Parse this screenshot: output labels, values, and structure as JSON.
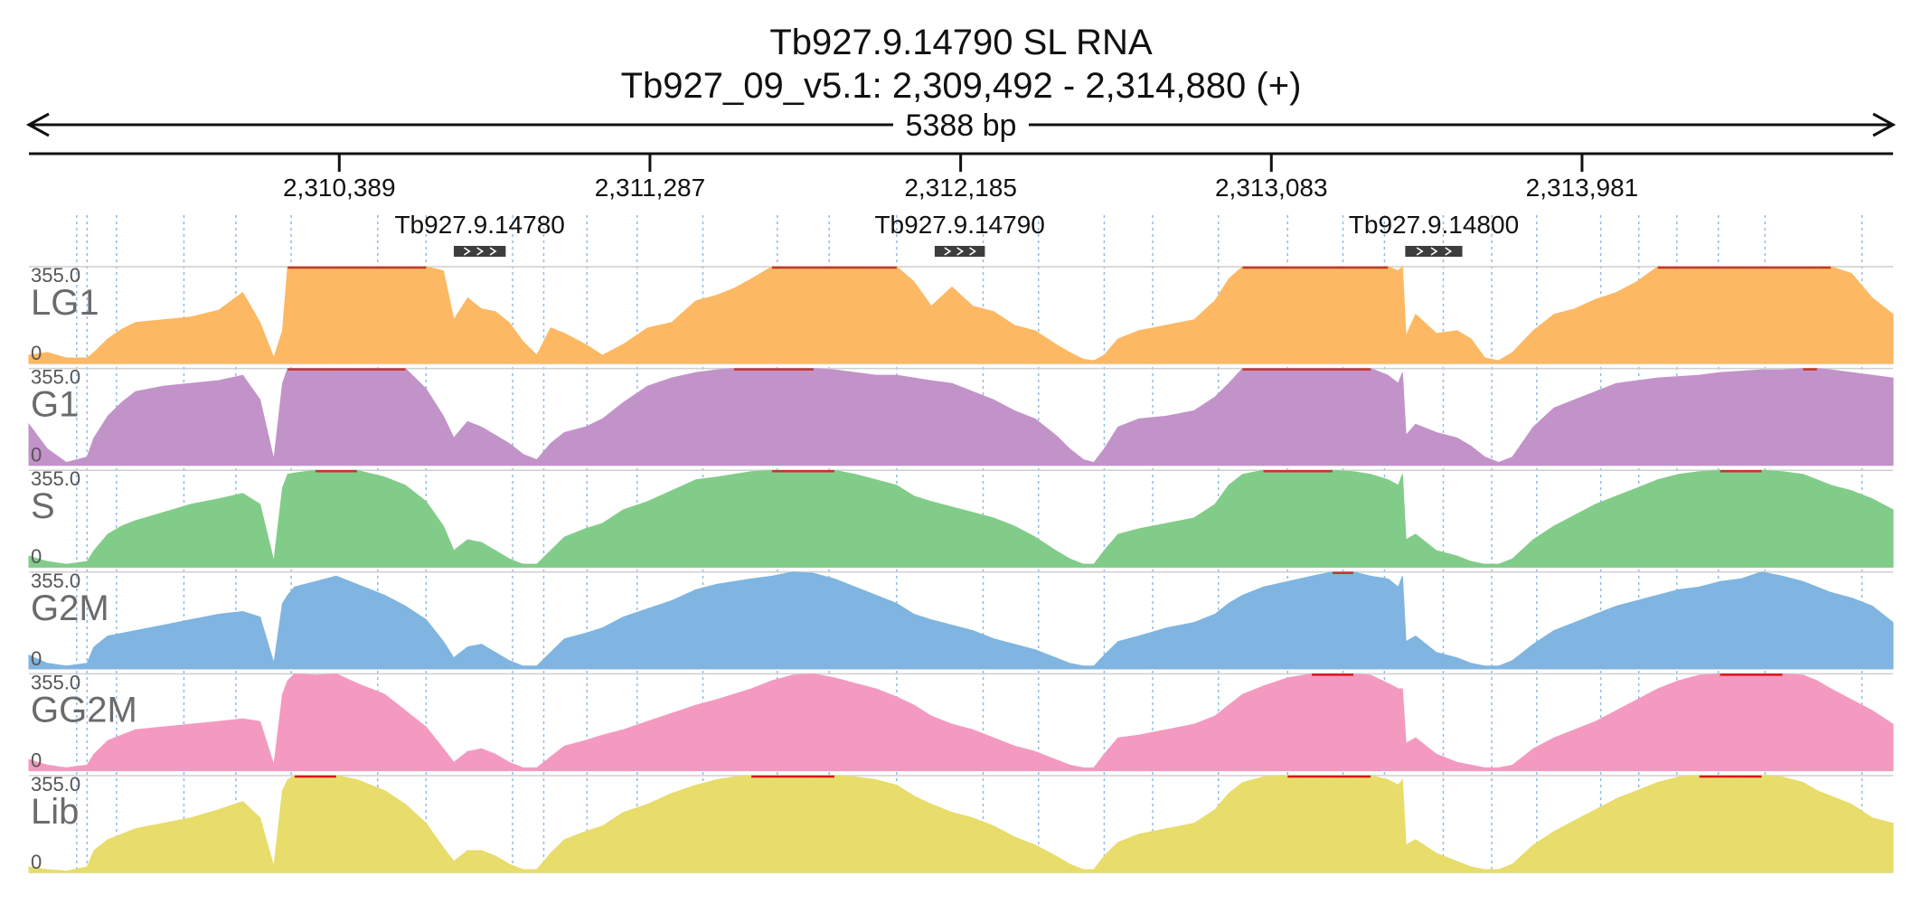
{
  "chart_data": {
    "type": "area",
    "title": "Tb927.9.14790  SL RNA",
    "subtitle": "Tb927_09_v5.1: 2,309,492 - 2,314,880 (+)",
    "span_label": "5388 bp",
    "xlim": [
      2309492,
      2314880
    ],
    "x_ticks": [
      2310389,
      2311287,
      2312185,
      2313083,
      2313981
    ],
    "x_tick_labels": [
      "2,310,389",
      "2,311,287",
      "2,312,185",
      "2,313,083",
      "2,313,981"
    ],
    "grid_lines": [
      2309630,
      2309660,
      2309745,
      2309940,
      2310090,
      2310250,
      2310500,
      2310640,
      2310890,
      2310980,
      2311105,
      2311250,
      2311440,
      2311655,
      2311805,
      2312000,
      2312250,
      2312410,
      2312600,
      2312740,
      2312930,
      2313130,
      2313290,
      2313410,
      2313580,
      2313720,
      2313850,
      2314035,
      2314145,
      2314255,
      2314375,
      2314510,
      2314790
    ],
    "genes": [
      {
        "name": "Tb927.9.14780",
        "start": 2310720,
        "end": 2310870,
        "strand": "+"
      },
      {
        "name": "Tb927.9.14790",
        "start": 2312110,
        "end": 2312255,
        "strand": "+"
      },
      {
        "name": "Tb927.9.14800",
        "start": 2313470,
        "end": 2313635,
        "strand": "+"
      }
    ],
    "ylim": [
      0,
      355.0
    ],
    "y_max_label": "355.0",
    "y_min_label": "0",
    "x": [
      2309492,
      2309545,
      2309600,
      2309660,
      2309680,
      2309720,
      2309760,
      2309800,
      2309880,
      2309960,
      2310040,
      2310110,
      2310160,
      2310200,
      2310225,
      2310240,
      2310260,
      2310320,
      2310380,
      2310440,
      2310520,
      2310580,
      2310640,
      2310690,
      2310720,
      2310760,
      2310800,
      2310840,
      2310880,
      2310920,
      2310960,
      2311000,
      2311040,
      2311100,
      2311150,
      2311210,
      2311280,
      2311350,
      2311420,
      2311480,
      2311530,
      2311580,
      2311640,
      2311700,
      2311760,
      2311820,
      2311880,
      2311940,
      2312000,
      2312050,
      2312100,
      2312160,
      2312220,
      2312280,
      2312340,
      2312400,
      2312460,
      2312500,
      2312540,
      2312570,
      2312600,
      2312640,
      2312700,
      2312780,
      2312860,
      2312920,
      2312960,
      2313000,
      2313060,
      2313130,
      2313200,
      2313260,
      2313320,
      2313370,
      2313420,
      2313450,
      2313462,
      2313472,
      2313500,
      2313560,
      2313620,
      2313660,
      2313700,
      2313740,
      2313780,
      2313840,
      2313900,
      2313960,
      2314020,
      2314080,
      2314140,
      2314200,
      2314260,
      2314320,
      2314380,
      2314440,
      2314500,
      2314560,
      2314620,
      2314660,
      2314700,
      2314760,
      2314820,
      2314880
    ],
    "series": [
      {
        "name": "LG1",
        "color": "#FDB863",
        "clip_color": "#C0392B",
        "values": [
          30,
          40,
          20,
          20,
          40,
          90,
          125,
          150,
          160,
          170,
          195,
          260,
          150,
          20,
          120,
          360,
          360,
          360,
          360,
          360,
          360,
          360,
          360,
          340,
          160,
          240,
          200,
          190,
          150,
          80,
          30,
          130,
          110,
          70,
          30,
          70,
          130,
          150,
          230,
          250,
          275,
          310,
          360,
          360,
          360,
          360,
          360,
          360,
          360,
          300,
          210,
          280,
          210,
          190,
          140,
          120,
          70,
          40,
          15,
          10,
          30,
          90,
          120,
          140,
          160,
          230,
          310,
          360,
          360,
          360,
          360,
          360,
          360,
          360,
          360,
          340,
          360,
          100,
          180,
          110,
          120,
          90,
          20,
          10,
          40,
          120,
          180,
          200,
          235,
          260,
          300,
          355,
          360,
          360,
          360,
          360,
          360,
          360,
          360,
          360,
          360,
          330,
          240,
          180
        ]
      },
      {
        "name": "G1",
        "color": "#C293C9",
        "clip_color": "#C0392B",
        "values": [
          150,
          60,
          10,
          30,
          100,
          180,
          230,
          270,
          290,
          300,
          310,
          330,
          240,
          20,
          300,
          360,
          360,
          360,
          360,
          360,
          360,
          360,
          280,
          180,
          100,
          160,
          140,
          110,
          80,
          40,
          20,
          80,
          120,
          140,
          170,
          230,
          290,
          320,
          340,
          350,
          355,
          355,
          355,
          355,
          355,
          350,
          340,
          330,
          330,
          320,
          310,
          300,
          270,
          240,
          200,
          170,
          110,
          60,
          20,
          10,
          60,
          140,
          170,
          180,
          200,
          250,
          300,
          355,
          355,
          355,
          355,
          355,
          355,
          355,
          330,
          300,
          340,
          110,
          150,
          120,
          100,
          70,
          30,
          10,
          30,
          140,
          210,
          240,
          270,
          300,
          310,
          320,
          325,
          330,
          340,
          345,
          350,
          350,
          355,
          355,
          350,
          340,
          330,
          320
        ]
      },
      {
        "name": "S",
        "color": "#82CC89",
        "clip_color": "#C0392B",
        "values": [
          40,
          20,
          10,
          20,
          60,
          120,
          150,
          170,
          200,
          230,
          250,
          270,
          230,
          20,
          290,
          340,
          345,
          355,
          360,
          355,
          330,
          300,
          240,
          150,
          60,
          100,
          90,
          60,
          30,
          10,
          10,
          60,
          110,
          140,
          160,
          210,
          240,
          280,
          320,
          330,
          340,
          350,
          360,
          360,
          360,
          355,
          340,
          320,
          300,
          260,
          240,
          220,
          200,
          180,
          150,
          110,
          60,
          30,
          10,
          10,
          60,
          120,
          140,
          160,
          180,
          230,
          300,
          340,
          355,
          360,
          360,
          360,
          350,
          340,
          320,
          300,
          340,
          100,
          120,
          60,
          40,
          20,
          10,
          10,
          30,
          100,
          150,
          190,
          230,
          260,
          290,
          320,
          340,
          350,
          360,
          360,
          355,
          350,
          340,
          320,
          300,
          280,
          250,
          210
        ]
      },
      {
        "name": "G2M",
        "color": "#7FB5E0",
        "clip_color": "#C0392B",
        "values": [
          50,
          20,
          10,
          20,
          80,
          120,
          130,
          140,
          160,
          180,
          200,
          210,
          190,
          20,
          240,
          270,
          300,
          320,
          340,
          310,
          270,
          230,
          180,
          100,
          40,
          80,
          90,
          60,
          30,
          10,
          10,
          60,
          110,
          130,
          150,
          190,
          220,
          250,
          290,
          310,
          320,
          330,
          340,
          360,
          350,
          330,
          300,
          270,
          240,
          200,
          180,
          160,
          140,
          110,
          90,
          70,
          40,
          20,
          10,
          10,
          50,
          100,
          120,
          150,
          170,
          200,
          240,
          270,
          300,
          320,
          340,
          360,
          355,
          340,
          330,
          300,
          340,
          100,
          120,
          60,
          40,
          20,
          10,
          10,
          30,
          90,
          140,
          170,
          200,
          230,
          250,
          270,
          290,
          300,
          320,
          330,
          355,
          340,
          320,
          300,
          280,
          260,
          230,
          170
        ]
      },
      {
        "name": "GG2M",
        "color": "#F49AC1",
        "clip_color": "#D7191C",
        "values": [
          40,
          20,
          10,
          20,
          60,
          110,
          130,
          150,
          160,
          170,
          180,
          190,
          180,
          20,
          280,
          330,
          360,
          350,
          360,
          320,
          280,
          220,
          160,
          80,
          30,
          70,
          80,
          60,
          30,
          10,
          10,
          50,
          90,
          110,
          130,
          150,
          180,
          210,
          240,
          260,
          280,
          300,
          330,
          350,
          355,
          340,
          320,
          300,
          270,
          240,
          200,
          170,
          150,
          120,
          90,
          70,
          40,
          20,
          10,
          10,
          60,
          120,
          130,
          150,
          170,
          200,
          240,
          280,
          310,
          340,
          355,
          360,
          360,
          350,
          320,
          300,
          300,
          100,
          120,
          60,
          30,
          20,
          10,
          10,
          20,
          80,
          120,
          150,
          180,
          220,
          260,
          300,
          330,
          350,
          360,
          360,
          360,
          360,
          350,
          330,
          300,
          260,
          220,
          170
        ]
      },
      {
        "name": "Lib",
        "color": "#E8DC6A",
        "clip_color": "#D7191C",
        "values": [
          20,
          10,
          5,
          20,
          80,
          120,
          140,
          160,
          180,
          200,
          230,
          260,
          200,
          20,
          300,
          340,
          360,
          360,
          360,
          340,
          300,
          250,
          180,
          90,
          40,
          80,
          80,
          60,
          30,
          10,
          10,
          70,
          120,
          150,
          170,
          220,
          250,
          290,
          320,
          340,
          350,
          360,
          360,
          360,
          360,
          360,
          350,
          340,
          320,
          280,
          250,
          220,
          200,
          170,
          130,
          100,
          60,
          30,
          10,
          10,
          60,
          110,
          140,
          160,
          180,
          230,
          290,
          330,
          350,
          360,
          360,
          360,
          360,
          355,
          340,
          320,
          340,
          100,
          120,
          70,
          40,
          20,
          10,
          10,
          30,
          100,
          150,
          190,
          230,
          270,
          300,
          330,
          350,
          360,
          360,
          360,
          360,
          350,
          330,
          300,
          280,
          250,
          200,
          180
        ]
      }
    ]
  }
}
